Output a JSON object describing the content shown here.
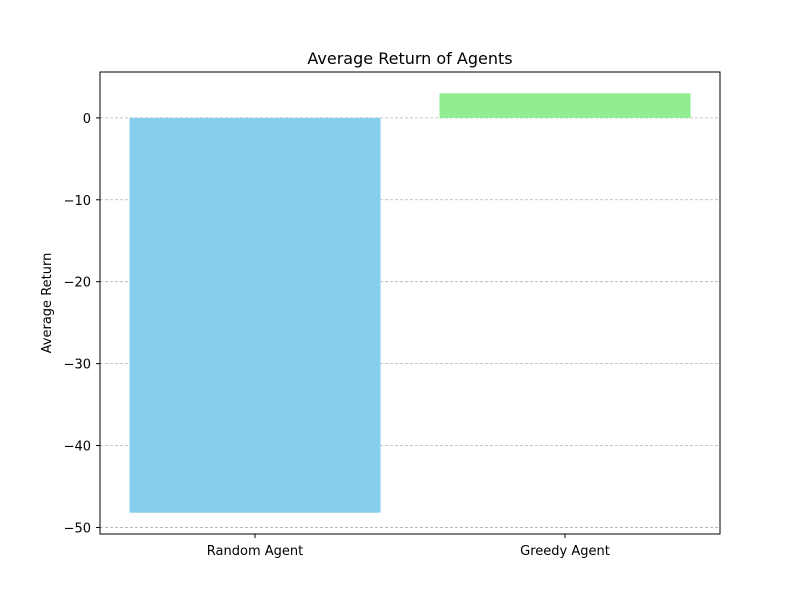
{
  "chart_data": {
    "type": "bar",
    "title": "Average Return of Agents",
    "xlabel": "",
    "ylabel": "Average Return",
    "categories": [
      "Random Agent",
      "Greedy Agent"
    ],
    "values": [
      -48.2,
      3.0
    ],
    "colors": [
      "#87ceeb",
      "#90ee90"
    ],
    "ylim": [
      -50.8,
      5.6
    ],
    "yticks": [
      0,
      -10,
      -20,
      -30,
      -40,
      -50
    ],
    "ytick_labels": [
      "0",
      "−10",
      "−20",
      "−30",
      "−40",
      "−50"
    ],
    "grid": {
      "axis": "y",
      "style": "dashed",
      "color": "#b0b0b0"
    }
  }
}
